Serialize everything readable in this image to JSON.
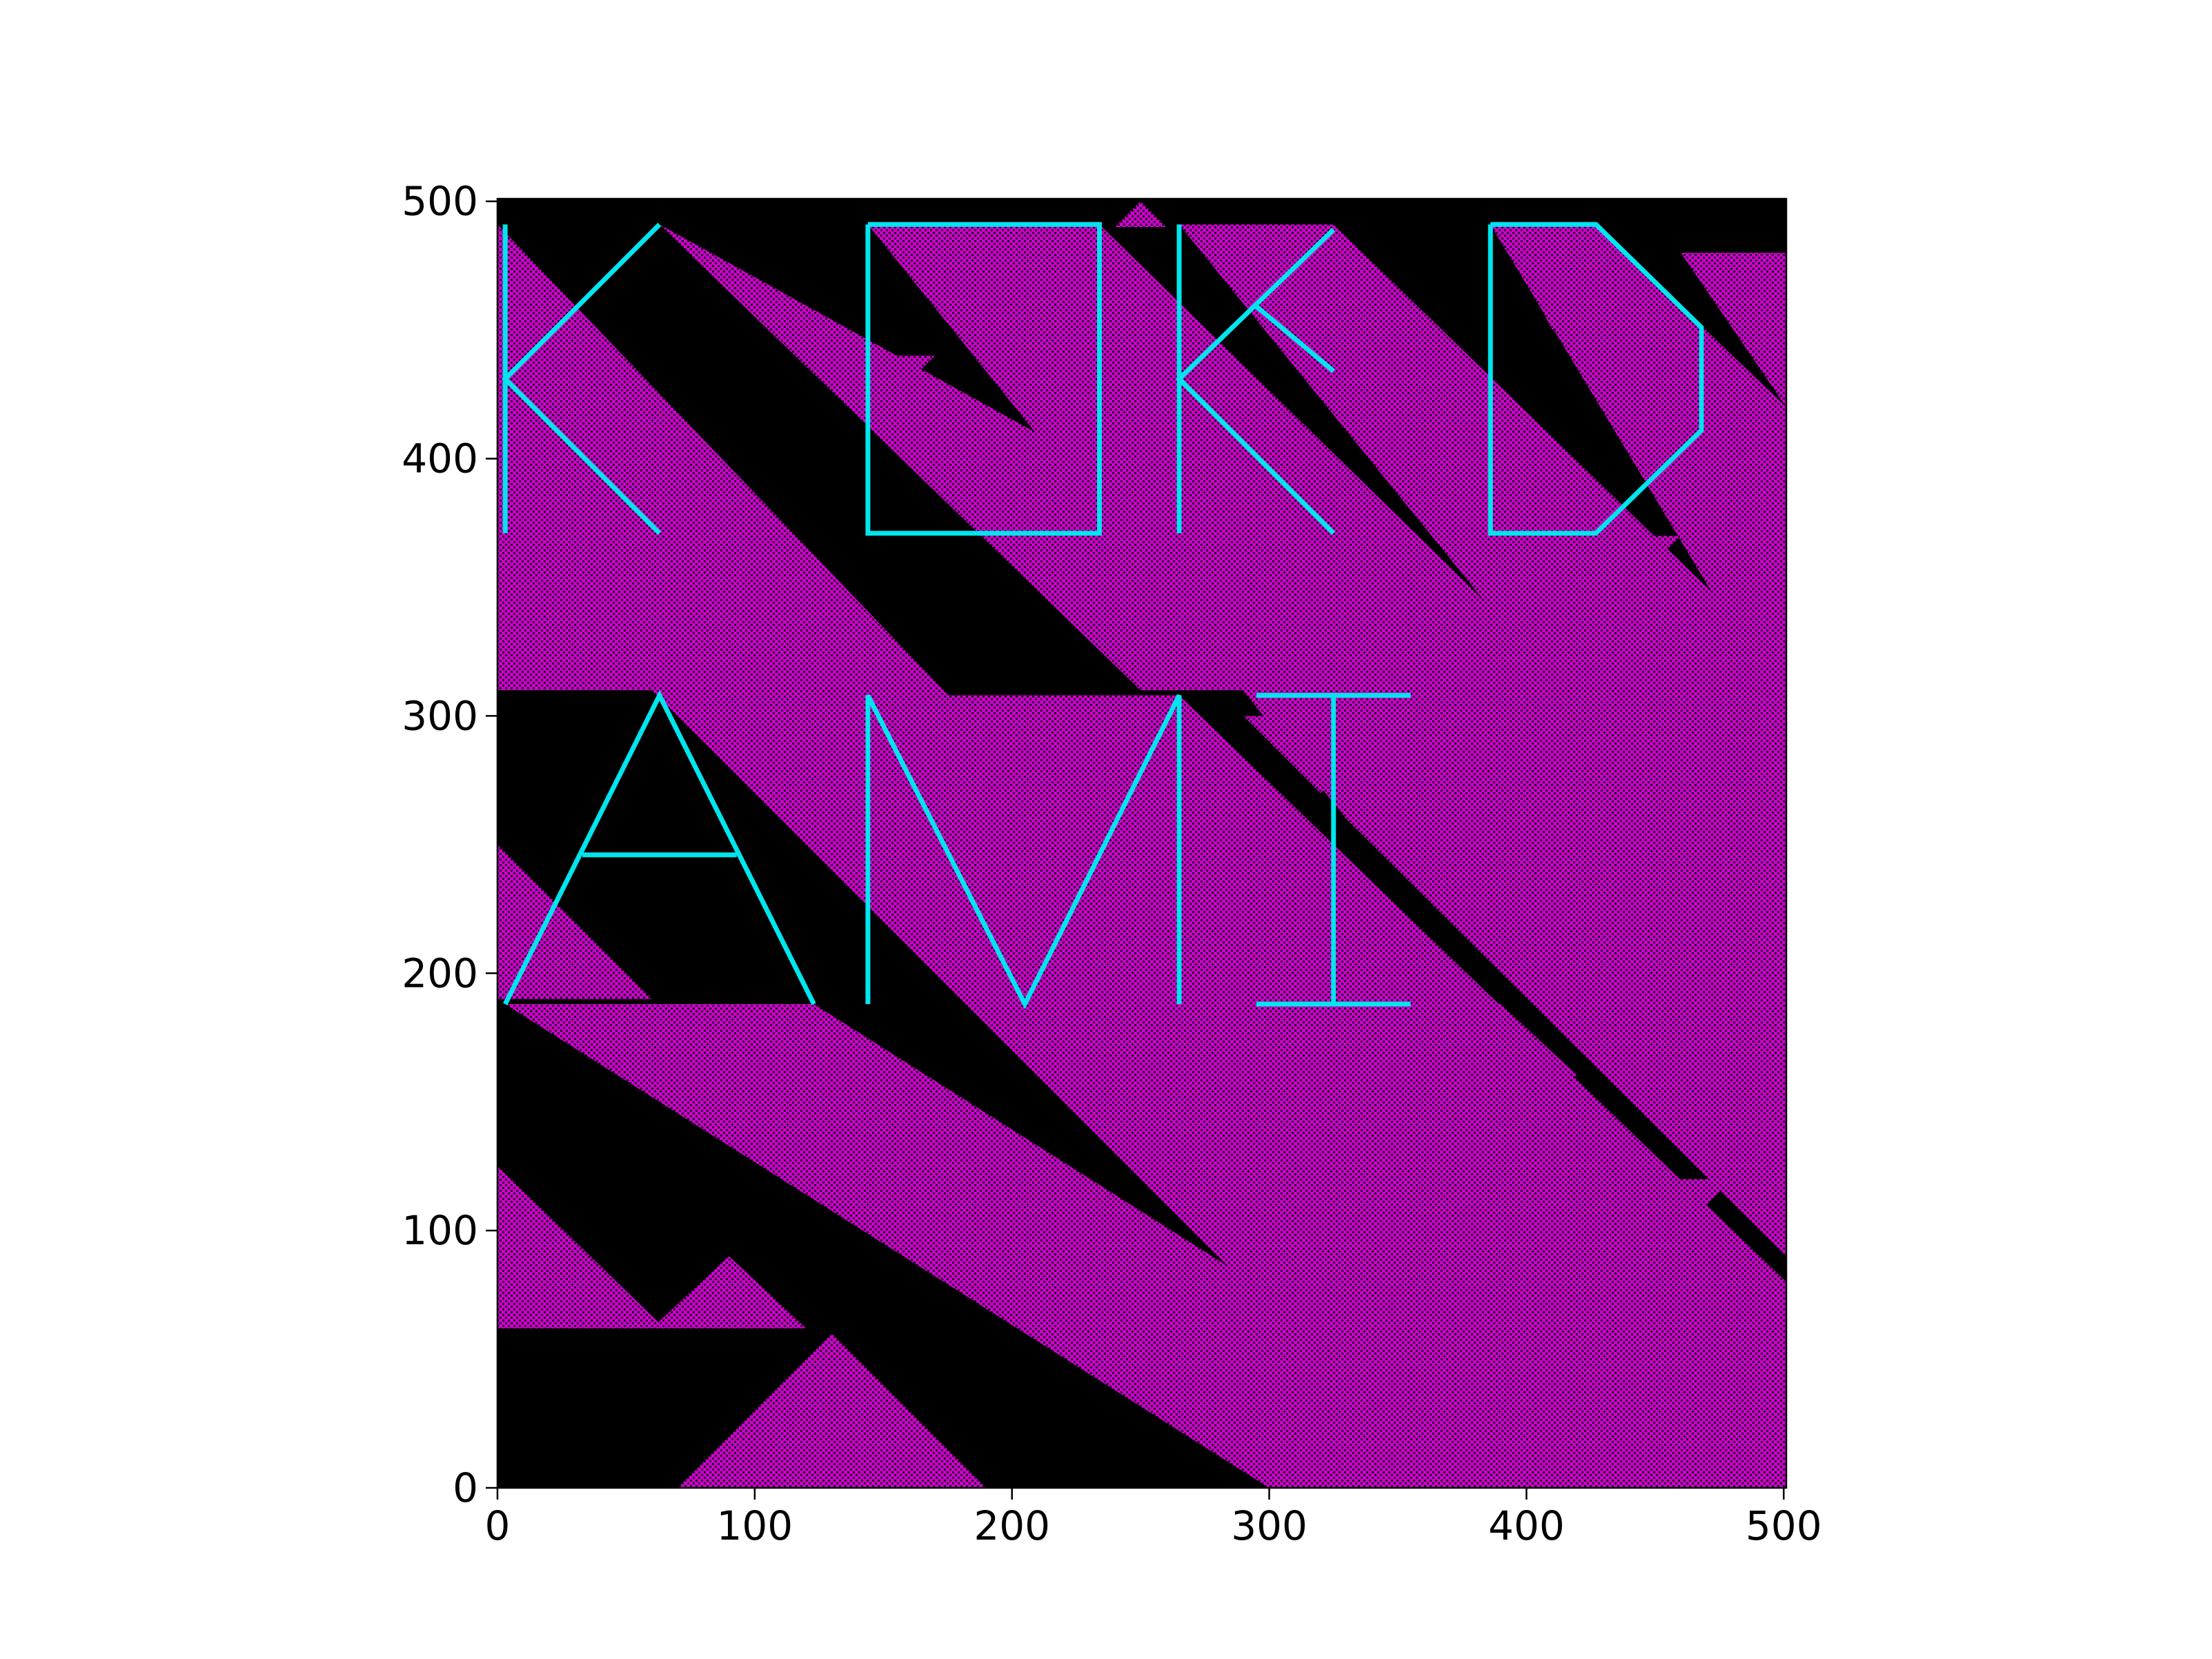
{
  "chart_data": {
    "type": "heatmap",
    "title": "",
    "xlabel": "",
    "ylabel": "",
    "xlim": [
      0,
      501
    ],
    "ylim": [
      0,
      501
    ],
    "x_ticks": [
      0,
      100,
      200,
      300,
      400,
      500
    ],
    "y_ticks": [
      0,
      100,
      200,
      300,
      400,
      500
    ],
    "grid": false,
    "legend": "none",
    "colors": {
      "background": "#000000",
      "cells": "#cc00cc",
      "letters": "#00e5ee"
    },
    "overlay_strokes": [
      {
        "name": "K-1",
        "points": [
          [
            3,
            491
          ],
          [
            3,
            371
          ]
        ]
      },
      {
        "name": "K-1",
        "points": [
          [
            63,
            491
          ],
          [
            3,
            431
          ],
          [
            63,
            371
          ]
        ]
      },
      {
        "name": "O",
        "points": [
          [
            144,
            491
          ],
          [
            234,
            491
          ],
          [
            234,
            371
          ],
          [
            144,
            371
          ],
          [
            144,
            491
          ]
        ]
      },
      {
        "name": "K-2",
        "points": [
          [
            265,
            491
          ],
          [
            265,
            371
          ]
        ]
      },
      {
        "name": "K-2",
        "points": [
          [
            325,
            489
          ],
          [
            265,
            431
          ],
          [
            325,
            371
          ]
        ]
      },
      {
        "name": "K-2",
        "points": [
          [
            294,
            460
          ],
          [
            325,
            434
          ]
        ]
      },
      {
        "name": "D",
        "points": [
          [
            386,
            491
          ],
          [
            427,
            491
          ],
          [
            468,
            451
          ],
          [
            468,
            411
          ],
          [
            427,
            371
          ],
          [
            386,
            371
          ],
          [
            386,
            491
          ]
        ]
      },
      {
        "name": "A",
        "points": [
          [
            3,
            188
          ],
          [
            63,
            308
          ],
          [
            123,
            188
          ]
        ]
      },
      {
        "name": "A",
        "points": [
          [
            33,
            246
          ],
          [
            93,
            246
          ]
        ]
      },
      {
        "name": "M",
        "points": [
          [
            144,
            188
          ],
          [
            144,
            308
          ],
          [
            205,
            188
          ],
          [
            265,
            308
          ],
          [
            265,
            188
          ]
        ]
      },
      {
        "name": "I",
        "points": [
          [
            295,
            308
          ],
          [
            355,
            308
          ]
        ]
      },
      {
        "name": "I",
        "points": [
          [
            325,
            308
          ],
          [
            325,
            188
          ]
        ]
      },
      {
        "name": "I",
        "points": [
          [
            295,
            188
          ],
          [
            355,
            188
          ]
        ]
      }
    ]
  }
}
